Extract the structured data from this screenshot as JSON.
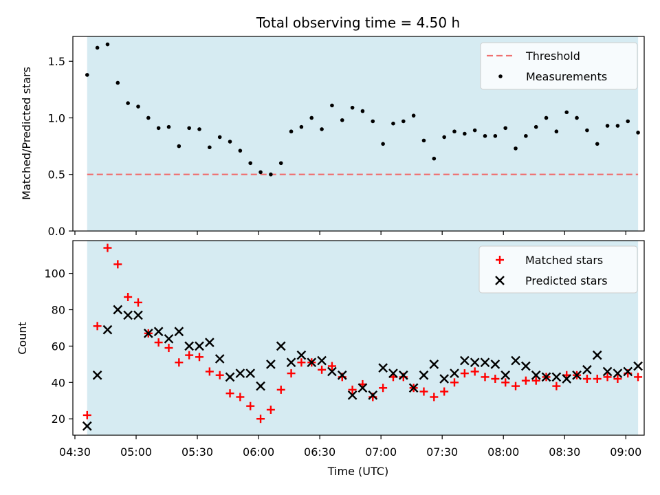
{
  "chart_data": [
    {
      "type": "scatter",
      "title": "Total observing time = 4.50 h",
      "xlabel": "",
      "ylabel": "Matched/Predicted stars",
      "xlim": [
        "04:29",
        "09:09"
      ],
      "ylim": [
        0,
        1.72
      ],
      "yticks": [
        "0.0",
        "0.5",
        "1.0",
        "1.5"
      ],
      "observing_window": [
        "04:36",
        "09:06"
      ],
      "threshold": 0.5,
      "legend_position": "top-right",
      "colors": {
        "span": "#add8e6",
        "threshold": "#ef7070",
        "measurements": "#000000"
      },
      "series": [
        {
          "name": "Measurements",
          "x": [
            "04:36",
            "04:41",
            "04:46",
            "04:51",
            "04:56",
            "05:01",
            "05:06",
            "05:11",
            "05:16",
            "05:21",
            "05:26",
            "05:31",
            "05:36",
            "05:41",
            "05:46",
            "05:51",
            "05:56",
            "06:01",
            "06:06",
            "06:11",
            "06:16",
            "06:21",
            "06:26",
            "06:31",
            "06:36",
            "06:41",
            "06:46",
            "06:51",
            "06:56",
            "07:01",
            "07:06",
            "07:11",
            "07:16",
            "07:21",
            "07:26",
            "07:31",
            "07:36",
            "07:41",
            "07:46",
            "07:51",
            "07:56",
            "08:01",
            "08:06",
            "08:11",
            "08:16",
            "08:21",
            "08:26",
            "08:31",
            "08:36",
            "08:41",
            "08:46",
            "08:51",
            "08:56",
            "09:01",
            "09:06"
          ],
          "y": [
            1.38,
            1.62,
            1.65,
            1.31,
            1.13,
            1.1,
            1.0,
            0.91,
            0.92,
            0.75,
            0.91,
            0.9,
            0.74,
            0.83,
            0.79,
            0.71,
            0.6,
            0.52,
            0.5,
            0.6,
            0.88,
            0.92,
            1.0,
            0.9,
            1.11,
            0.98,
            1.09,
            1.06,
            0.97,
            0.77,
            0.95,
            0.97,
            1.02,
            0.8,
            0.64,
            0.83,
            0.88,
            0.86,
            0.89,
            0.84,
            0.84,
            0.91,
            0.73,
            0.84,
            0.92,
            1.0,
            0.88,
            1.05,
            1.0,
            0.89,
            0.77,
            0.93,
            0.93,
            0.97,
            0.87
          ]
        }
      ],
      "legend": [
        "Threshold",
        "Measurements"
      ]
    },
    {
      "type": "scatter",
      "title": "",
      "xlabel": "Time (UTC)",
      "ylabel": "Count",
      "xlim": [
        "04:29",
        "09:09"
      ],
      "ylim": [
        11,
        118
      ],
      "yticks": [
        "20",
        "40",
        "60",
        "80",
        "100"
      ],
      "xticks": [
        "04:30",
        "05:00",
        "05:30",
        "06:00",
        "06:30",
        "07:00",
        "07:30",
        "08:00",
        "08:30",
        "09:00"
      ],
      "observing_window": [
        "04:36",
        "09:06"
      ],
      "legend_position": "top-right",
      "colors": {
        "span": "#add8e6",
        "matched": "#ff0000",
        "predicted": "#000000"
      },
      "series": [
        {
          "name": "Matched stars",
          "marker": "plus",
          "x": [
            "04:36",
            "04:41",
            "04:46",
            "04:51",
            "04:56",
            "05:01",
            "05:06",
            "05:11",
            "05:16",
            "05:21",
            "05:26",
            "05:31",
            "05:36",
            "05:41",
            "05:46",
            "05:51",
            "05:56",
            "06:01",
            "06:06",
            "06:11",
            "06:16",
            "06:21",
            "06:26",
            "06:31",
            "06:36",
            "06:41",
            "06:46",
            "06:51",
            "06:56",
            "07:01",
            "07:06",
            "07:11",
            "07:16",
            "07:21",
            "07:26",
            "07:31",
            "07:36",
            "07:41",
            "07:46",
            "07:51",
            "07:56",
            "08:01",
            "08:06",
            "08:11",
            "08:16",
            "08:21",
            "08:26",
            "08:31",
            "08:36",
            "08:41",
            "08:46",
            "08:51",
            "08:56",
            "09:01",
            "09:06"
          ],
          "y": [
            22,
            71,
            114,
            105,
            87,
            84,
            67,
            62,
            59,
            51,
            55,
            54,
            46,
            44,
            34,
            32,
            27,
            20,
            25,
            36,
            45,
            51,
            51,
            47,
            49,
            43,
            36,
            39,
            32,
            37,
            43,
            43,
            37,
            35,
            32,
            35,
            40,
            45,
            46,
            43,
            42,
            40,
            38,
            41,
            41,
            43,
            38,
            44,
            44,
            42,
            42,
            43,
            42,
            45,
            43
          ]
        },
        {
          "name": "Predicted stars",
          "marker": "x",
          "x": [
            "04:36",
            "04:41",
            "04:46",
            "04:51",
            "04:56",
            "05:01",
            "05:06",
            "05:11",
            "05:16",
            "05:21",
            "05:26",
            "05:31",
            "05:36",
            "05:41",
            "05:46",
            "05:51",
            "05:56",
            "06:01",
            "06:06",
            "06:11",
            "06:16",
            "06:21",
            "06:26",
            "06:31",
            "06:36",
            "06:41",
            "06:46",
            "06:51",
            "06:56",
            "07:01",
            "07:06",
            "07:11",
            "07:16",
            "07:21",
            "07:26",
            "07:31",
            "07:36",
            "07:41",
            "07:46",
            "07:51",
            "07:56",
            "08:01",
            "08:06",
            "08:11",
            "08:16",
            "08:21",
            "08:26",
            "08:31",
            "08:36",
            "08:41",
            "08:46",
            "08:51",
            "08:56",
            "09:01",
            "09:06"
          ],
          "y": [
            16,
            44,
            69,
            80,
            77,
            77,
            67,
            68,
            64,
            68,
            60,
            60,
            62,
            53,
            43,
            45,
            45,
            38,
            50,
            60,
            51,
            55,
            51,
            52,
            46,
            44,
            33,
            37,
            33,
            48,
            45,
            44,
            37,
            44,
            50,
            42,
            45,
            52,
            51,
            51,
            50,
            44,
            52,
            49,
            44,
            43,
            43,
            42,
            44,
            47,
            55,
            46,
            45,
            46,
            49
          ]
        }
      ],
      "legend": [
        "Matched stars",
        "Predicted stars"
      ]
    }
  ]
}
